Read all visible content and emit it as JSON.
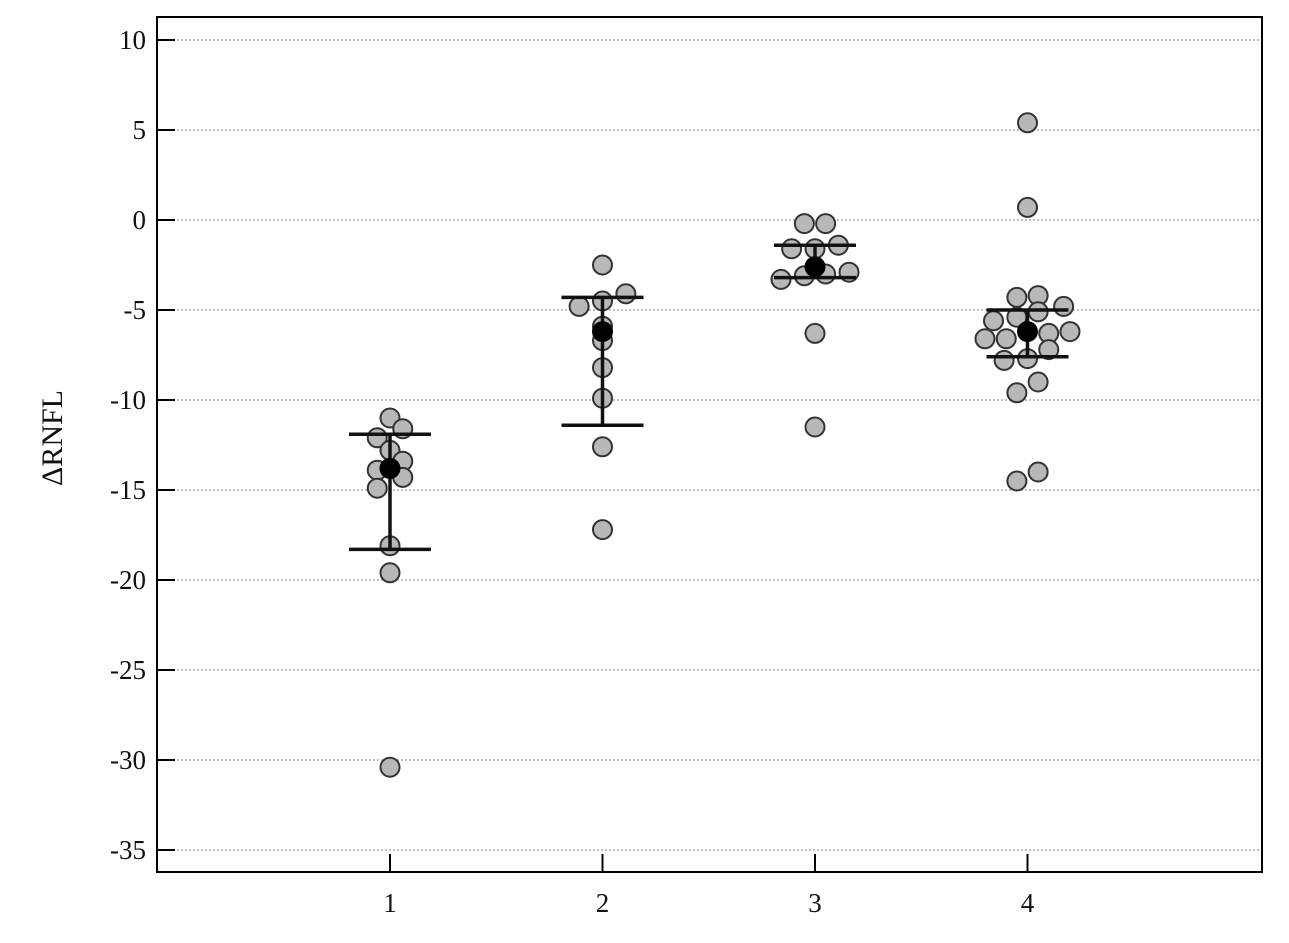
{
  "chart_data": {
    "type": "scatter",
    "title": "",
    "xlabel": "",
    "ylabel": "ΔRNFL",
    "categories": [
      "1",
      "2",
      "3",
      "4"
    ],
    "ylim": [
      -36,
      11
    ],
    "yticks": [
      10,
      5,
      0,
      -5,
      -10,
      -15,
      -20,
      -25,
      -30,
      -35
    ],
    "ytick_labels": [
      "10",
      "5",
      "0",
      "-5",
      "-10",
      "-15",
      "-20",
      "-25",
      "-30",
      "-35"
    ],
    "grid": "horizontal-dotted",
    "colors": {
      "point_fill": "#b8b8b8",
      "point_stroke": "#333333",
      "mean_marker": "#000000",
      "frame": "#000000",
      "grid": "#9a9a9a"
    },
    "groups": [
      {
        "category": "1",
        "mean": -13.8,
        "ci_upper": -11.9,
        "ci_lower": -18.3,
        "points": [
          {
            "offset": 0.0,
            "y": -11.0
          },
          {
            "offset": 0.06,
            "y": -11.6
          },
          {
            "offset": -0.06,
            "y": -12.1
          },
          {
            "offset": 0.0,
            "y": -12.8
          },
          {
            "offset": 0.06,
            "y": -13.4
          },
          {
            "offset": -0.06,
            "y": -13.9
          },
          {
            "offset": 0.06,
            "y": -14.3
          },
          {
            "offset": -0.06,
            "y": -14.9
          },
          {
            "offset": 0.0,
            "y": -18.1
          },
          {
            "offset": 0.0,
            "y": -19.6
          },
          {
            "offset": 0.0,
            "y": -30.4
          }
        ]
      },
      {
        "category": "2",
        "mean": -6.2,
        "ci_upper": -4.3,
        "ci_lower": -11.4,
        "points": [
          {
            "offset": 0.0,
            "y": -2.5
          },
          {
            "offset": 0.11,
            "y": -4.1
          },
          {
            "offset": 0.0,
            "y": -4.5
          },
          {
            "offset": -0.11,
            "y": -4.8
          },
          {
            "offset": 0.0,
            "y": -5.9
          },
          {
            "offset": 0.0,
            "y": -6.7
          },
          {
            "offset": 0.0,
            "y": -8.2
          },
          {
            "offset": 0.0,
            "y": -9.9
          },
          {
            "offset": 0.0,
            "y": -12.6
          },
          {
            "offset": 0.0,
            "y": -17.2
          }
        ]
      },
      {
        "category": "3",
        "mean": -2.6,
        "ci_upper": -1.4,
        "ci_lower": -3.2,
        "points": [
          {
            "offset": -0.05,
            "y": -0.2
          },
          {
            "offset": 0.05,
            "y": -0.2
          },
          {
            "offset": -0.11,
            "y": -1.6
          },
          {
            "offset": 0.0,
            "y": -1.6
          },
          {
            "offset": 0.11,
            "y": -1.4
          },
          {
            "offset": -0.16,
            "y": -3.3
          },
          {
            "offset": -0.05,
            "y": -3.1
          },
          {
            "offset": 0.05,
            "y": -3.0
          },
          {
            "offset": 0.16,
            "y": -2.9
          },
          {
            "offset": 0.0,
            "y": -6.3
          },
          {
            "offset": 0.0,
            "y": -11.5
          }
        ]
      },
      {
        "category": "4",
        "mean": -6.2,
        "ci_upper": -5.0,
        "ci_lower": -7.6,
        "points": [
          {
            "offset": 0.0,
            "y": 5.4
          },
          {
            "offset": 0.0,
            "y": 0.7
          },
          {
            "offset": -0.05,
            "y": -4.3
          },
          {
            "offset": 0.05,
            "y": -4.2
          },
          {
            "offset": 0.17,
            "y": -4.8
          },
          {
            "offset": -0.16,
            "y": -5.6
          },
          {
            "offset": -0.05,
            "y": -5.4
          },
          {
            "offset": 0.05,
            "y": -5.1
          },
          {
            "offset": -0.2,
            "y": -6.6
          },
          {
            "offset": -0.1,
            "y": -6.6
          },
          {
            "offset": 0.1,
            "y": -6.3
          },
          {
            "offset": 0.2,
            "y": -6.2
          },
          {
            "offset": 0.1,
            "y": -7.2
          },
          {
            "offset": -0.11,
            "y": -7.8
          },
          {
            "offset": 0.0,
            "y": -7.7
          },
          {
            "offset": 0.05,
            "y": -9.0
          },
          {
            "offset": -0.05,
            "y": -9.6
          },
          {
            "offset": 0.05,
            "y": -14.0
          },
          {
            "offset": -0.05,
            "y": -14.5
          }
        ]
      }
    ]
  }
}
